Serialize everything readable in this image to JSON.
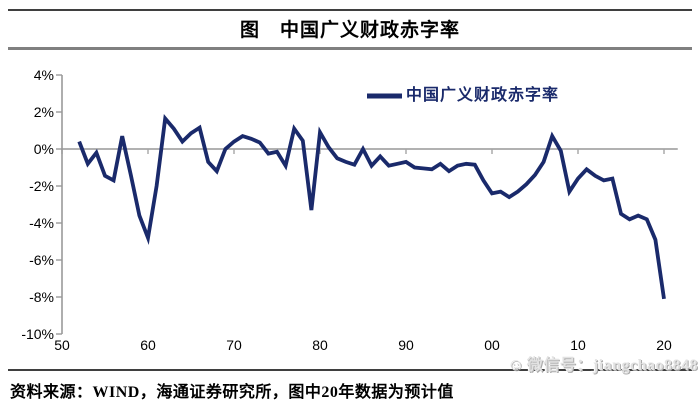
{
  "figure": {
    "title": "图　中国广义财政赤字率",
    "source_note": "资料来源：WIND，海通证券研究所，图中20年数据为预计值",
    "watermark_icon": "☺",
    "watermark_text": "微信号：jiangchao8848"
  },
  "legend": {
    "label": "中国广义财政赤字率"
  },
  "colors": {
    "line": "#1A2A6B",
    "axis": "#999999",
    "zero_line": "#a6a6a6",
    "text": "#000000",
    "frame_rule_dark": "#3f3f3f",
    "frame_rule_gray": "#808080",
    "watermark": "#e2e2e2"
  },
  "chart_data": {
    "type": "line",
    "title": "中国广义财政赤字率",
    "series_name": "中国广义财政赤字率",
    "unit": "% of GDP",
    "start_year": 1952,
    "end_year": 2020,
    "values": [
      0.4,
      -0.8,
      -0.2,
      -1.45,
      -1.7,
      0.7,
      -1.4,
      -3.6,
      -4.8,
      -2.0,
      1.65,
      1.1,
      0.4,
      0.85,
      1.15,
      -0.7,
      -1.2,
      0.0,
      0.4,
      0.7,
      0.55,
      0.35,
      -0.25,
      -0.15,
      -0.9,
      1.1,
      0.45,
      -3.3,
      0.9,
      0.1,
      -0.5,
      -0.7,
      -0.85,
      0.0,
      -0.9,
      -0.4,
      -0.9,
      -0.8,
      -0.7,
      -1.0,
      -1.05,
      -1.1,
      -0.8,
      -1.2,
      -0.9,
      -0.8,
      -0.85,
      -1.7,
      -2.4,
      -2.3,
      -2.6,
      -2.3,
      -1.9,
      -1.4,
      -0.7,
      0.7,
      -0.1,
      -2.3,
      -1.6,
      -1.1,
      -1.45,
      -1.7,
      -1.6,
      -3.5,
      -3.8,
      -3.6,
      -3.8,
      -4.9,
      -8.1
    ],
    "y_ticks": [
      "4%",
      "2%",
      "0%",
      "-2%",
      "-4%",
      "-6%",
      "-8%",
      "-10%"
    ],
    "y_tick_values": [
      4,
      2,
      0,
      -2,
      -4,
      -6,
      -8,
      -10
    ],
    "x_tick_labels": [
      "50",
      "60",
      "70",
      "80",
      "90",
      "00",
      "10",
      "20"
    ],
    "x_tick_years": [
      1950,
      1960,
      1970,
      1980,
      1990,
      2000,
      2010,
      2020
    ],
    "ylim": [
      -10,
      4
    ],
    "xlim": [
      1950,
      2021.6
    ],
    "zero_line": true,
    "grid": false,
    "legend_position": "top-right",
    "annotation": "图中20年数据为预计值 (2020 value is a forecast)"
  }
}
